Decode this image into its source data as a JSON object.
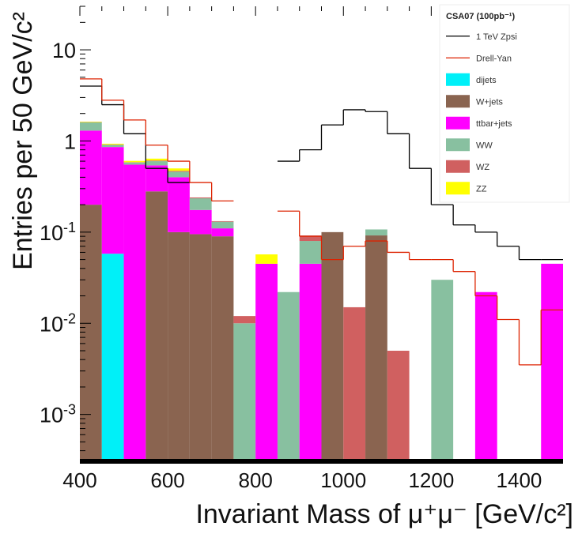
{
  "chart_data": {
    "type": "bar",
    "stacked": true,
    "title": "",
    "xlabel_html": "Invariant Mass of μ⁺μ⁻ [GeV/c²]",
    "ylabel_html": "Entries per 50 GeV/c²",
    "xlim": [
      400,
      1500
    ],
    "ylim": [
      0.0003,
      30
    ],
    "yscale": "log",
    "bin_width": 50,
    "bin_edges_start": [
      400,
      450,
      500,
      550,
      600,
      650,
      700,
      750,
      800,
      850,
      900,
      950,
      1000,
      1050,
      1100,
      1150,
      1200,
      1250,
      1300,
      1350,
      1400,
      1450
    ],
    "x_ticks": [
      "400",
      "600",
      "800",
      "1000",
      "1200",
      "1400"
    ],
    "x_tick_values": [
      400,
      600,
      800,
      1000,
      1200,
      1400
    ],
    "y_ticks": [
      {
        "base": "10",
        "exp": "-3",
        "value": 0.001
      },
      {
        "base": "10",
        "exp": "-2",
        "value": 0.01
      },
      {
        "base": "10",
        "exp": "-1",
        "value": 0.1
      },
      {
        "base": "1",
        "exp": "",
        "value": 1
      },
      {
        "base": "10",
        "exp": "",
        "value": 10
      }
    ],
    "stacked_series": [
      {
        "name": "dijets",
        "color": "#00f0f8",
        "values": [
          0,
          0.058,
          0,
          0,
          0,
          0,
          0,
          0,
          0,
          0,
          0,
          0,
          0,
          0,
          0,
          0,
          0,
          0,
          0,
          0,
          0,
          0
        ]
      },
      {
        "name": "W+jets",
        "color": "#8a6450",
        "values": [
          0.2,
          0,
          0,
          0.28,
          0.1,
          0.095,
          0.09,
          0,
          0,
          0,
          0,
          0.1,
          0,
          0.092,
          0,
          0,
          0,
          0,
          0,
          0,
          0,
          0
        ]
      },
      {
        "name": "ttbar+jets",
        "color": "#ff00ff",
        "values": [
          1.1,
          0.8,
          0.55,
          0.26,
          0.3,
          0.08,
          0.02,
          0,
          0.045,
          0,
          0.045,
          0,
          0,
          0,
          0,
          0,
          0,
          0,
          0.022,
          0,
          0,
          0.045
        ]
      },
      {
        "name": "WW",
        "color": "#88c0a0",
        "values": [
          0.3,
          0.05,
          0.03,
          0.06,
          0.06,
          0.06,
          0.02,
          0.01,
          0,
          0.022,
          0.035,
          0,
          0,
          0.015,
          0,
          0,
          0.03,
          0,
          0,
          0,
          0,
          0
        ]
      },
      {
        "name": "WZ",
        "color": "#d06060",
        "values": [
          0.01,
          0.005,
          0.005,
          0.01,
          0.01,
          0.005,
          0.002,
          0.002,
          0,
          0,
          0.012,
          0,
          0.015,
          0,
          0.005,
          0,
          0,
          0,
          0,
          0,
          0,
          0
        ]
      },
      {
        "name": "ZZ",
        "color": "#ffff00",
        "values": [
          0.02,
          0.02,
          0.02,
          0.03,
          0.03,
          0,
          0,
          0,
          0.012,
          0,
          0,
          0,
          0,
          0,
          0,
          0,
          0,
          0,
          0,
          0,
          0,
          0
        ]
      }
    ],
    "line_series": [
      {
        "name": "1 TeV Zpsi",
        "color": "#000000",
        "values": [
          4,
          2.5,
          1.2,
          0.5,
          0.35,
          0,
          0,
          0,
          0,
          0.6,
          0.8,
          1.5,
          2.2,
          2.1,
          1.2,
          0.5,
          0.2,
          0.12,
          0.1,
          0.07,
          0.05,
          0.05
        ]
      },
      {
        "name": "Drell-Yan",
        "color": "#dd2200",
        "values": [
          4.8,
          2.8,
          1.7,
          0.9,
          0.6,
          0.35,
          0.22,
          0,
          0,
          0.17,
          0.09,
          0.05,
          0.07,
          0.08,
          0.06,
          0.05,
          0.05,
          0.037,
          0.02,
          0.011,
          0.0035,
          0.014
        ]
      }
    ],
    "legend": {
      "title_html": "CSA07 (100pb⁻¹)",
      "placement": "top-right",
      "entries": [
        "1 TeV Zpsi",
        "Drell-Yan",
        "dijets",
        "W+jets",
        "ttbar+jets",
        "WW",
        "WZ",
        "ZZ"
      ]
    },
    "grid": false
  }
}
